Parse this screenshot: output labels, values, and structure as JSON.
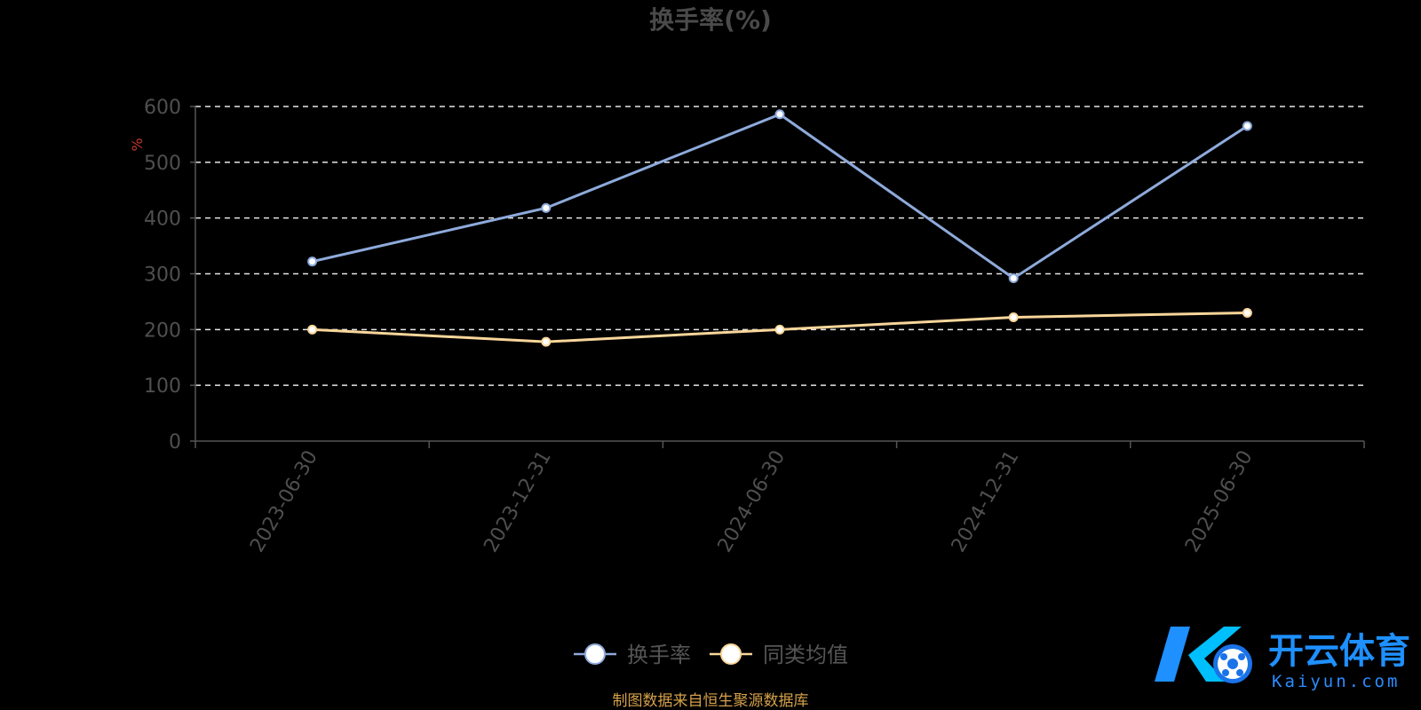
{
  "chart_data": {
    "type": "line",
    "title": "换手率(%)",
    "ylabel": "%",
    "ylim": [
      0,
      600
    ],
    "yticks": [
      0,
      100,
      200,
      300,
      400,
      500,
      600
    ],
    "grid": true,
    "categories": [
      "2023-06-30",
      "2023-12-31",
      "2024-06-30",
      "2024-12-31",
      "2025-06-30"
    ],
    "series": [
      {
        "name": "换手率",
        "color": "#8eaadb",
        "values": [
          322,
          418,
          586,
          292,
          565
        ]
      },
      {
        "name": "同类均值",
        "color": "#f9d69a",
        "values": [
          200,
          178,
          200,
          222,
          230
        ]
      }
    ],
    "legend_position": "bottom-center"
  },
  "footer": {
    "source": "制图数据来自恒生聚源数据库"
  },
  "logo": {
    "icon": "kaiyun-logo-icon",
    "name": "开云体育",
    "domain": "Kaiyun.com"
  }
}
